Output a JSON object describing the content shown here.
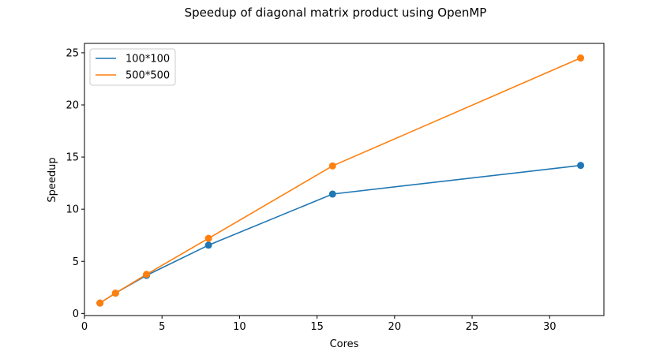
{
  "chart_data": {
    "type": "line",
    "title": "Speedup of diagonal matrix product using OpenMP",
    "xlabel": "Cores",
    "ylabel": "Speedup",
    "x": [
      1,
      2,
      4,
      8,
      16,
      32
    ],
    "series": [
      {
        "name": "100*100",
        "color": "#1f77b4",
        "values": [
          1.0,
          1.95,
          3.65,
          6.55,
          11.45,
          14.2
        ]
      },
      {
        "name": "500*500",
        "color": "#ff7f0e",
        "values": [
          1.0,
          1.95,
          3.75,
          7.2,
          14.15,
          24.5
        ]
      }
    ],
    "xlim": [
      0,
      33.5
    ],
    "ylim": [
      -0.2,
      25.9
    ],
    "xticks": [
      0,
      5,
      10,
      15,
      20,
      25,
      30
    ],
    "yticks": [
      0,
      5,
      10,
      15,
      20,
      25
    ],
    "grid": false,
    "legend": "top-left",
    "markers": true
  }
}
